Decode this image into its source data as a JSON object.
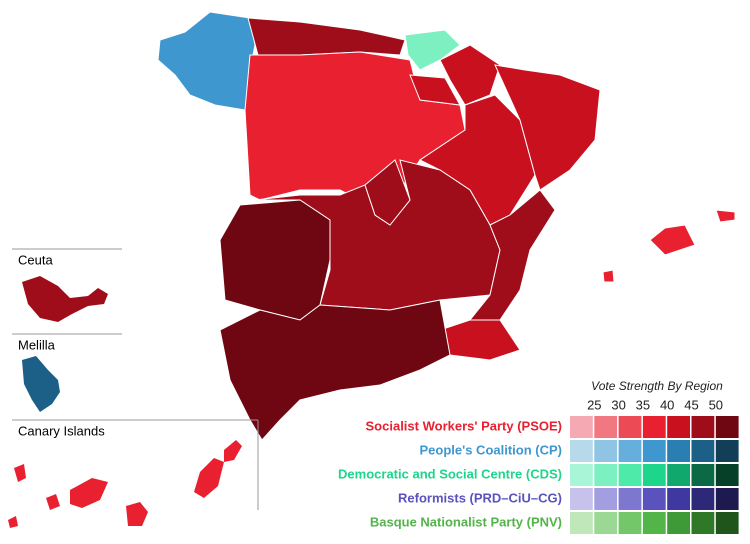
{
  "map": {
    "insets": [
      "Ceuta",
      "Melilla",
      "Canary Islands"
    ],
    "legend": {
      "title": "Vote Strength By Region",
      "ticks": [
        25,
        30,
        35,
        40,
        45,
        50
      ],
      "parties": [
        {
          "name": "Socialist Workers' Party (PSOE)",
          "color": "#e8202f",
          "shades": [
            "#f5a9b3",
            "#f17880",
            "#ec4b56",
            "#e8202f",
            "#c8101f",
            "#a00d1a",
            "#6e0712"
          ]
        },
        {
          "name": "People's Coalition (CP)",
          "color": "#3e97cf",
          "shades": [
            "#b7daeb",
            "#8fc4e2",
            "#66aedb",
            "#3e97cf",
            "#2a7fb2",
            "#1c5f87",
            "#123e58"
          ]
        },
        {
          "name": "Democratic and Social Centre (CDS)",
          "color": "#1dd68b",
          "shades": [
            "#a8f6d7",
            "#7cf0c1",
            "#4eeaa9",
            "#1dd68b",
            "#10a86c",
            "#0b6a45",
            "#064029"
          ]
        },
        {
          "name": "Reformists (PRD–CiU–CG)",
          "color": "#5a52bd",
          "shades": [
            "#c6c2ec",
            "#a39ee0",
            "#7d77cf",
            "#5a52bd",
            "#3f38a0",
            "#2d2878",
            "#1e1a50"
          ]
        },
        {
          "name": "Basque Nationalist Party (PNV)",
          "color": "#52b449",
          "shades": [
            "#c0e7b9",
            "#9bd893",
            "#73c769",
            "#52b449",
            "#3e9a36",
            "#2e7828",
            "#1f551b"
          ]
        }
      ]
    }
  }
}
